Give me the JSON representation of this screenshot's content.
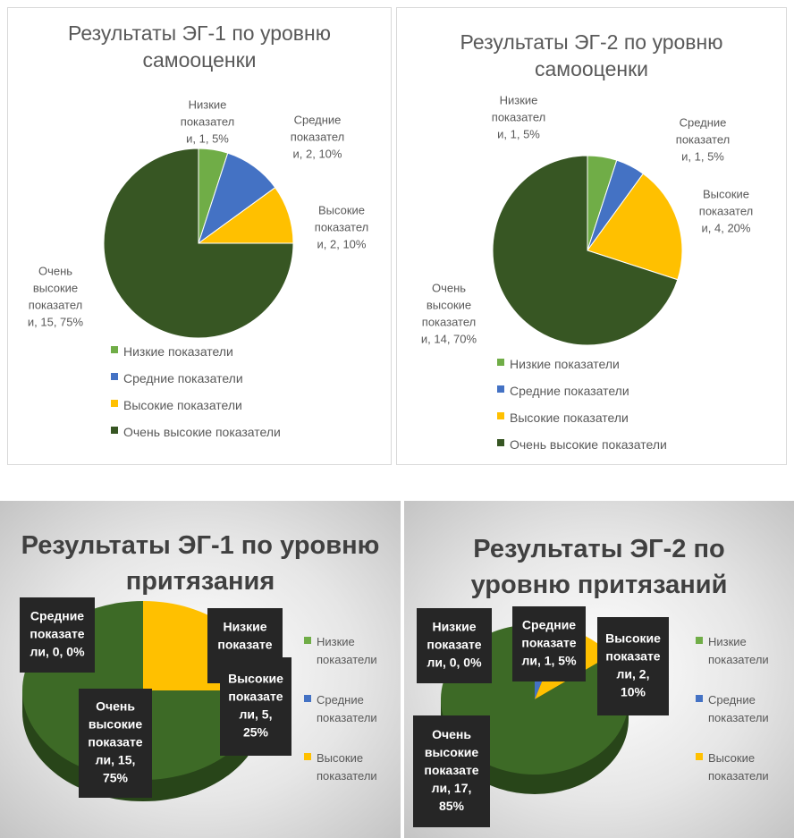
{
  "chart_data": [
    {
      "type": "pie",
      "title": "Результаты ЭГ-1 по уровню самооценки",
      "categories": [
        "Низкие показатели",
        "Средние показатели",
        "Высокие показатели",
        "Очень высокие показатели"
      ],
      "values": [
        1,
        2,
        2,
        15
      ],
      "value_labels": [
        [
          "Низкие",
          "показател",
          "и, 1, 5%"
        ],
        [
          "Средние",
          "показател",
          "и, 2, 10%"
        ],
        [
          "Высокие",
          "показател",
          "и, 2, 10%"
        ],
        [
          "Очень",
          "высокие",
          "показател",
          "и, 15, 75%"
        ]
      ],
      "colors": [
        "#70ad47",
        "#4472c4",
        "#ffc000",
        "#375623"
      ]
    },
    {
      "type": "pie",
      "title": "Результаты ЭГ-2 по уровню самооценки",
      "categories": [
        "Низкие показатели",
        "Средние показатели",
        "Высокие показатели",
        "Очень высокие показатели"
      ],
      "values": [
        1,
        1,
        4,
        14
      ],
      "value_labels": [
        [
          "Низкие",
          "показател",
          "и, 1, 5%"
        ],
        [
          "Средние",
          "показател",
          "и, 1, 5%"
        ],
        [
          "Высокие",
          "показател",
          "и, 4, 20%"
        ],
        [
          "Очень",
          "высокие",
          "показател",
          "и, 14, 70%"
        ]
      ],
      "colors": [
        "#70ad47",
        "#4472c4",
        "#ffc000",
        "#375623"
      ]
    },
    {
      "type": "pie3d",
      "title": "Результаты ЭГ-1 по уровню притязания",
      "categories": [
        "Низкие показатели",
        "Средние показатели",
        "Высокие показатели",
        null
      ],
      "values": [
        0,
        0,
        5,
        15
      ],
      "value_labels": [
        [
          "Низкие",
          "показате",
          "ли, 0,"
        ],
        [
          "Средние",
          "показате",
          "ли, 0, 0%"
        ],
        [
          "Высокие",
          "показате",
          "ли, 5,",
          "25%"
        ],
        [
          "Очень",
          "высокие",
          "показате",
          "ли, 15,",
          "75%"
        ]
      ],
      "colors": [
        "#70ad47",
        "#4472c4",
        "#ffc000",
        "#3d6a26"
      ]
    },
    {
      "type": "pie3d",
      "title": "Результаты ЭГ-2 по уровню притязаний",
      "categories": [
        "Низкие показатели",
        "Средние показатели",
        "Высокие показатели",
        null
      ],
      "values": [
        0,
        1,
        2,
        17
      ],
      "value_labels": [
        [
          "Низкие",
          "показате",
          "ли, 0, 0%"
        ],
        [
          "Средние",
          "показате",
          "ли, 1, 5%"
        ],
        [
          "Высокие",
          "показате",
          "ли, 2,",
          "10%"
        ],
        [
          "Очень",
          "высокие",
          "показате",
          "ли, 17,",
          "85%"
        ]
      ],
      "colors": [
        "#70ad47",
        "#4472c4",
        "#ffc000",
        "#3d6a26"
      ]
    }
  ]
}
